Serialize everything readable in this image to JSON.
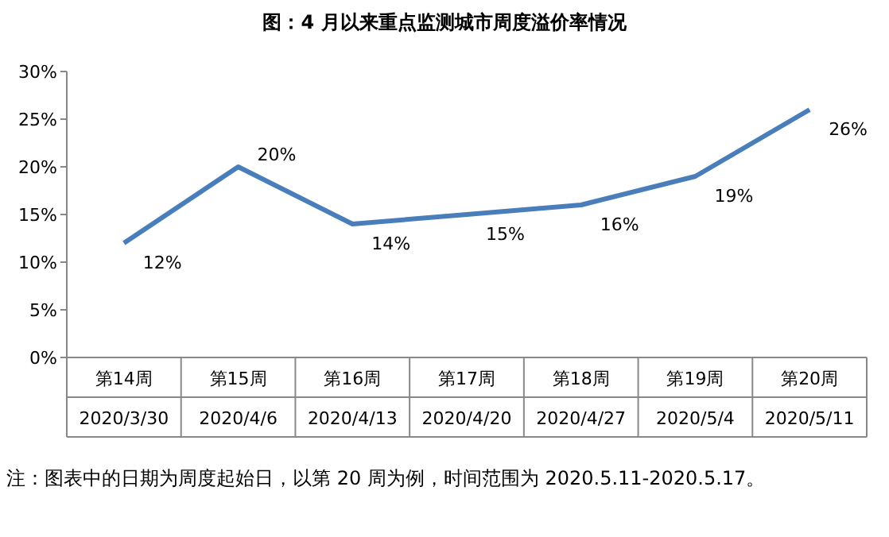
{
  "chart_data": {
    "type": "line",
    "title": "图：4 月以来重点监测城市周度溢价率情况",
    "categories": [
      "第14周\n2020/3/30",
      "第15周\n2020/4/6",
      "第16周\n2020/4/13",
      "第17周\n2020/4/20",
      "第18周\n2020/4/27",
      "第19周\n2020/5/4",
      "第20周\n2020/5/11"
    ],
    "series": [
      {
        "color": "#4a7ebb",
        "values": [
          12,
          20,
          14,
          15,
          16,
          19,
          26
        ],
        "value_labels": [
          "12%",
          "20%",
          "14%",
          "15%",
          "16%",
          "19%",
          "26%"
        ]
      }
    ],
    "ylim": [
      0,
      30
    ],
    "yticks": [
      {
        "value": 0,
        "label": "0%"
      },
      {
        "value": 5,
        "label": "5%"
      },
      {
        "value": 10,
        "label": "10%"
      },
      {
        "value": 15,
        "label": "15%"
      },
      {
        "value": 20,
        "label": "20%"
      },
      {
        "value": 25,
        "label": "25%"
      },
      {
        "value": 30,
        "label": "30%"
      }
    ],
    "marker": "none",
    "grid": false,
    "annotations": [
      "注：图表中的日期为周度起始日，以第 20 周为例，时间范围为 2020.5.11-2020.5.17。"
    ]
  }
}
